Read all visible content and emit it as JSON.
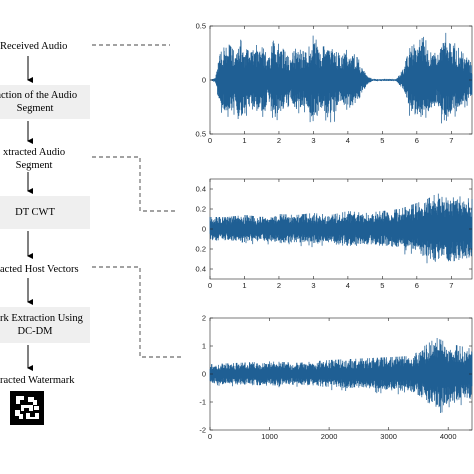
{
  "flowchart": {
    "received_audio": "Received Audio",
    "extraction_line1": "raction of the Audio",
    "extraction_line2": "Segment",
    "extracted_segment_line1": "xtracted Audio",
    "extracted_segment_line2": "Segment",
    "dtcwt": "DT CWT",
    "host_vectors": "acted Host Vectors",
    "watermark_extraction_line1": "mark Extraction Using",
    "watermark_extraction_line2": "DC-DM",
    "extracted_watermark": "racted Watermark"
  },
  "colors": {
    "waveform": "#1f5f94",
    "box_fill": "#efefef",
    "dashed": "#444444"
  },
  "chart_data": [
    {
      "type": "line",
      "description_kind": "waveform",
      "xlim": [
        0,
        7.6
      ],
      "ylim": [
        -0.5,
        0.5
      ],
      "xticks": [
        0,
        1,
        2,
        3,
        4,
        5,
        6,
        7
      ],
      "yticks": [
        0.5,
        0,
        -0.5
      ],
      "xtick_labels": [
        "0",
        "1",
        "2",
        "3",
        "4",
        "5",
        "6",
        "7"
      ],
      "ytick_labels": [
        "0.5",
        "0",
        "-0.5"
      ],
      "envelope": [
        [
          0.0,
          0.0
        ],
        [
          0.15,
          0.02
        ],
        [
          0.3,
          0.25
        ],
        [
          0.5,
          0.35
        ],
        [
          0.75,
          0.25
        ],
        [
          0.85,
          0.4
        ],
        [
          1.0,
          0.3
        ],
        [
          1.2,
          0.25
        ],
        [
          1.5,
          0.4
        ],
        [
          1.7,
          0.2
        ],
        [
          1.85,
          0.38
        ],
        [
          2.1,
          0.3
        ],
        [
          2.3,
          0.2
        ],
        [
          2.5,
          0.3
        ],
        [
          2.8,
          0.25
        ],
        [
          3.0,
          0.42
        ],
        [
          3.2,
          0.3
        ],
        [
          3.6,
          0.35
        ],
        [
          3.8,
          0.2
        ],
        [
          4.0,
          0.3
        ],
        [
          4.3,
          0.2
        ],
        [
          4.55,
          0.05
        ],
        [
          4.7,
          0.01
        ],
        [
          5.4,
          0.01
        ],
        [
          5.6,
          0.1
        ],
        [
          5.8,
          0.3
        ],
        [
          6.2,
          0.4
        ],
        [
          6.4,
          0.3
        ],
        [
          6.6,
          0.22
        ],
        [
          6.8,
          0.45
        ],
        [
          7.0,
          0.38
        ],
        [
          7.2,
          0.3
        ],
        [
          7.6,
          0.15
        ]
      ]
    },
    {
      "type": "line",
      "description_kind": "waveform",
      "xlim": [
        0,
        7.6
      ],
      "ylim": [
        -0.5,
        0.5
      ],
      "xticks": [
        0,
        1,
        2,
        3,
        4,
        5,
        6,
        7
      ],
      "yticks": [
        0.4,
        0.2,
        0,
        -0.2,
        -0.4
      ],
      "xtick_labels": [
        "0",
        "1",
        "2",
        "3",
        "4",
        "5",
        "6",
        "7"
      ],
      "ytick_labels": [
        "0.4",
        "0.2",
        "0",
        "-0.2",
        "-0.4"
      ],
      "envelope": [
        [
          0.0,
          0.12
        ],
        [
          0.5,
          0.12
        ],
        [
          1.0,
          0.14
        ],
        [
          1.5,
          0.12
        ],
        [
          2.0,
          0.15
        ],
        [
          2.5,
          0.14
        ],
        [
          3.0,
          0.16
        ],
        [
          3.5,
          0.14
        ],
        [
          4.0,
          0.18
        ],
        [
          4.5,
          0.16
        ],
        [
          5.0,
          0.18
        ],
        [
          5.5,
          0.2
        ],
        [
          6.0,
          0.26
        ],
        [
          6.3,
          0.3
        ],
        [
          6.6,
          0.36
        ],
        [
          6.8,
          0.3
        ],
        [
          7.0,
          0.36
        ],
        [
          7.3,
          0.32
        ],
        [
          7.6,
          0.3
        ]
      ]
    },
    {
      "type": "line",
      "description_kind": "waveform",
      "xlim": [
        0,
        4400
      ],
      "ylim": [
        -2,
        2
      ],
      "xticks": [
        0,
        1000,
        2000,
        3000,
        4000
      ],
      "yticks": [
        2,
        1,
        0,
        -1,
        -2
      ],
      "xtick_labels": [
        "0",
        "1000",
        "2000",
        "3000",
        "4000"
      ],
      "ytick_labels": [
        "2",
        "1",
        "0",
        "-1",
        "-2"
      ],
      "envelope": [
        [
          0,
          0.35
        ],
        [
          500,
          0.4
        ],
        [
          1000,
          0.45
        ],
        [
          1500,
          0.4
        ],
        [
          2000,
          0.5
        ],
        [
          2500,
          0.55
        ],
        [
          3000,
          0.6
        ],
        [
          3400,
          0.65
        ],
        [
          3600,
          1.0
        ],
        [
          3800,
          1.3
        ],
        [
          4000,
          1.1
        ],
        [
          4200,
          1.0
        ],
        [
          4400,
          0.9
        ]
      ]
    }
  ]
}
